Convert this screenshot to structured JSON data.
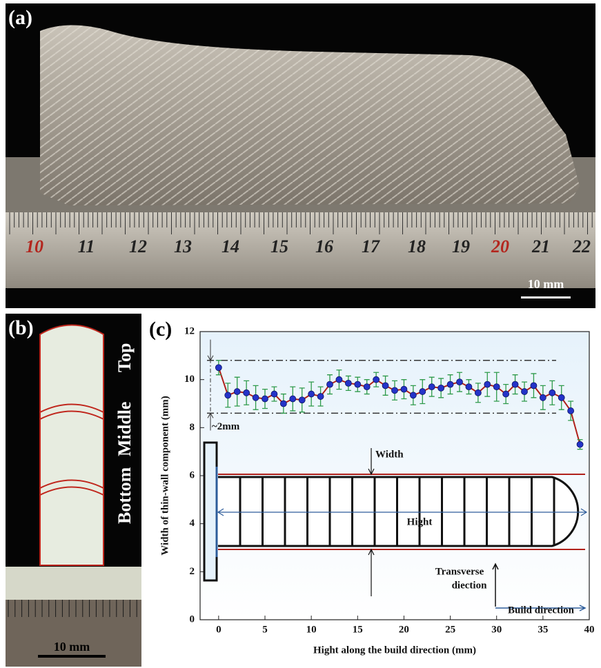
{
  "panel_a": {
    "label": "(a)",
    "ruler_numbers": [
      "10",
      "11",
      "12",
      "13",
      "14",
      "15",
      "16",
      "17",
      "18",
      "19",
      "20",
      "21",
      "22"
    ],
    "scale_bar": "10 mm"
  },
  "panel_b": {
    "label": "(b)",
    "regions": [
      "Bottom",
      "Middle",
      "Top"
    ],
    "scale_bar": "10 mm"
  },
  "chart_data": {
    "type": "scatter",
    "label": "(c)",
    "xlabel": "Hight along the build direction (mm)",
    "ylabel": "Width of thin-wall component (mm)",
    "x": [
      0,
      1,
      2,
      3,
      4,
      5,
      6,
      7,
      8,
      9,
      10,
      11,
      12,
      13,
      14,
      15,
      16,
      17,
      18,
      19,
      20,
      21,
      22,
      23,
      24,
      25,
      26,
      27,
      28,
      29,
      30,
      31,
      32,
      33,
      34,
      35,
      36,
      37,
      38,
      39
    ],
    "series": [
      {
        "color": "#2433c8",
        "line_color": "#b0201a",
        "error_color": "#2e9a4a",
        "values": [
          10.5,
          9.35,
          9.5,
          9.45,
          9.25,
          9.2,
          9.4,
          9.0,
          9.2,
          9.15,
          9.4,
          9.3,
          9.8,
          10.0,
          9.85,
          9.8,
          9.7,
          10.0,
          9.75,
          9.55,
          9.6,
          9.35,
          9.5,
          9.7,
          9.65,
          9.8,
          9.9,
          9.7,
          9.45,
          9.8,
          9.7,
          9.4,
          9.8,
          9.5,
          9.75,
          9.25,
          9.45,
          9.25,
          8.7,
          7.3
        ],
        "errors": [
          0.3,
          0.5,
          0.6,
          0.5,
          0.5,
          0.4,
          0.3,
          0.4,
          0.5,
          0.5,
          0.5,
          0.4,
          0.4,
          0.4,
          0.3,
          0.3,
          0.3,
          0.3,
          0.4,
          0.4,
          0.4,
          0.4,
          0.5,
          0.4,
          0.4,
          0.4,
          0.4,
          0.3,
          0.4,
          0.5,
          0.6,
          0.4,
          0.4,
          0.4,
          0.5,
          0.5,
          0.5,
          0.5,
          0.4,
          0.2
        ]
      }
    ],
    "ref_lines": [
      10.8,
      8.6
    ],
    "annotations": {
      "gap": "~2mm",
      "width": "Width",
      "hight": "Hight",
      "transverse": [
        "Transverse",
        "diection"
      ],
      "build": "Build direction"
    },
    "xlim": [
      -2,
      40
    ],
    "ylim": [
      0,
      12
    ],
    "xticks": [
      0,
      5,
      10,
      15,
      20,
      25,
      30,
      35,
      40
    ],
    "yticks": [
      0,
      2,
      4,
      6,
      8,
      10,
      12
    ]
  }
}
